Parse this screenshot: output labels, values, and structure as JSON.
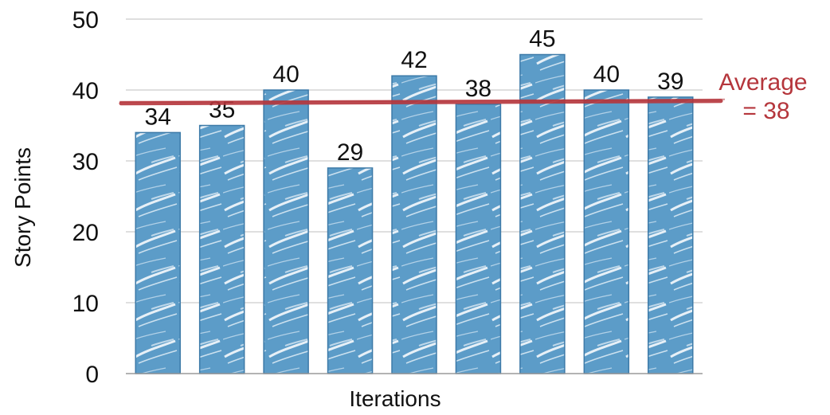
{
  "chart_data": {
    "type": "bar",
    "categories": [
      "",
      "",
      "",
      "",
      "",
      "",
      "",
      "",
      ""
    ],
    "values": [
      34,
      35,
      40,
      29,
      42,
      38,
      45,
      40,
      39
    ],
    "data_labels": [
      "34",
      "35",
      "40",
      "29",
      "42",
      "38",
      "45",
      "40",
      "39"
    ],
    "title": "",
    "xlabel": "Iterations",
    "ylabel": "Story Points",
    "ylim": [
      0,
      50
    ],
    "yticks": [
      "0",
      "10",
      "20",
      "30",
      "40",
      "50"
    ],
    "grid": true,
    "average": {
      "value": 38,
      "label_line1": "Average",
      "label_line2": "= 38"
    },
    "colors": {
      "bar": "#5c9cc8",
      "bar_stroke": "#3d7aa8",
      "average": "#b5363c",
      "grid": "#bfbfbf"
    }
  }
}
